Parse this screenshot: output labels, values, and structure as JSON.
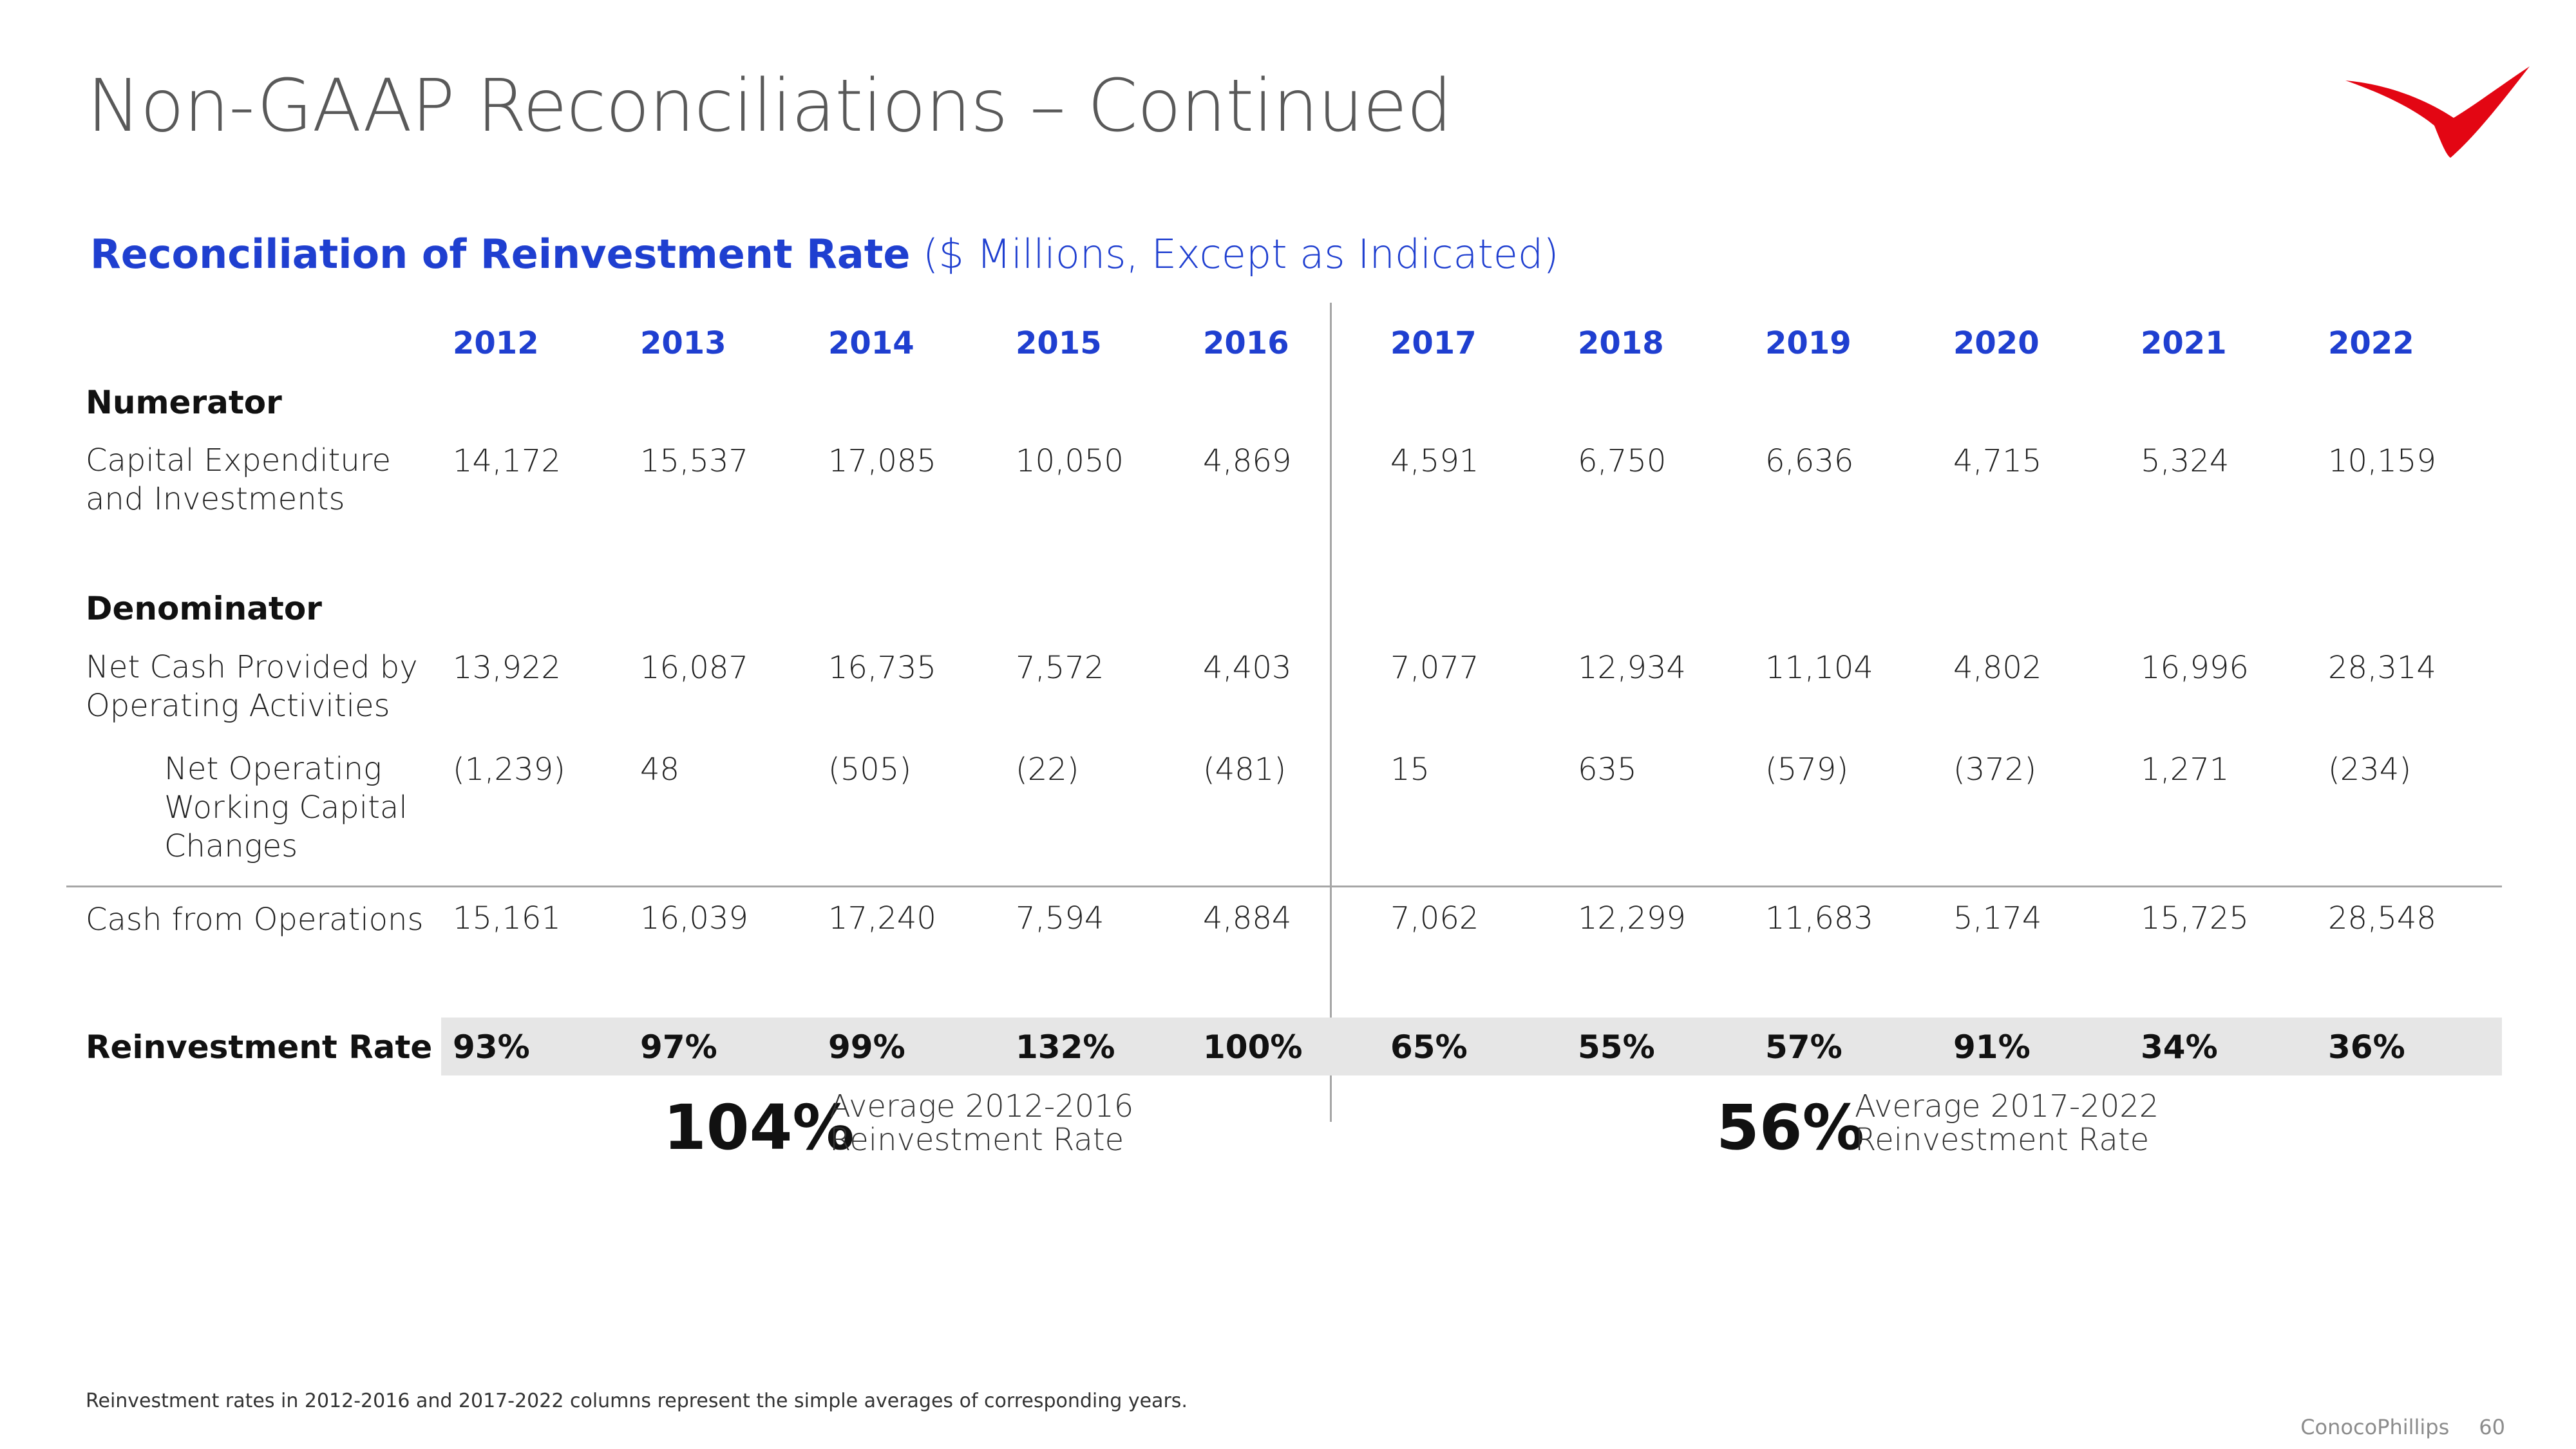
{
  "title": "Non-GAAP Reconciliations – Continued",
  "subtitle": {
    "bold": "Reconciliation of Reinvestment Rate",
    "light": "($ Millions, Except as Indicated)"
  },
  "colors": {
    "accent": "#1f3fd0",
    "logo_red": "#e30613",
    "band": "#e6e6e6"
  },
  "logo_icon": "conocophillips-red-wing-logo",
  "table": {
    "years": [
      "2012",
      "2013",
      "2014",
      "2015",
      "2016",
      "2017",
      "2018",
      "2019",
      "2020",
      "2021",
      "2022"
    ],
    "numerator_label": "Numerator",
    "denominator_label": "Denominator",
    "capex": {
      "label_line1": "Capital Expenditure",
      "label_line2": "and Investments",
      "values": [
        "14,172",
        "15,537",
        "17,085",
        "10,050",
        "4,869",
        "4,591",
        "6,750",
        "6,636",
        "4,715",
        "5,324",
        "10,159"
      ]
    },
    "net_cash": {
      "label_line1": "Net Cash Provided by",
      "label_line2": "Operating Activities",
      "values": [
        "13,922",
        "16,087",
        "16,735",
        "7,572",
        "4,403",
        "7,077",
        "12,934",
        "11,104",
        "4,802",
        "16,996",
        "28,314"
      ]
    },
    "working_capital": {
      "label_line1": "Net Operating",
      "label_line2": "Working Capital",
      "label_line3": "Changes",
      "values": [
        "(1,239)",
        "48",
        "(505)",
        "(22)",
        "(481)",
        "15",
        "635",
        "(579)",
        "(372)",
        "1,271",
        "(234)"
      ]
    },
    "cfo": {
      "label": "Cash from Operations",
      "values": [
        "15,161",
        "16,039",
        "17,240",
        "7,594",
        "4,884",
        "7,062",
        "12,299",
        "11,683",
        "5,174",
        "15,725",
        "28,548"
      ]
    },
    "rate": {
      "label": "Reinvestment Rate",
      "values": [
        "93%",
        "97%",
        "99%",
        "132%",
        "100%",
        "65%",
        "55%",
        "57%",
        "91%",
        "34%",
        "36%"
      ]
    }
  },
  "averages": [
    {
      "value": "104%",
      "line1": "Average 2012-2016",
      "line2": "Reinvestment Rate"
    },
    {
      "value": "56%",
      "line1": "Average 2017-2022",
      "line2": "Reinvestment Rate"
    }
  ],
  "footnote": "Reinvestment rates in 2012-2016 and 2017-2022 columns represent the simple averages of corresponding years.",
  "footer": {
    "company": "ConocoPhillips",
    "page": "60"
  }
}
